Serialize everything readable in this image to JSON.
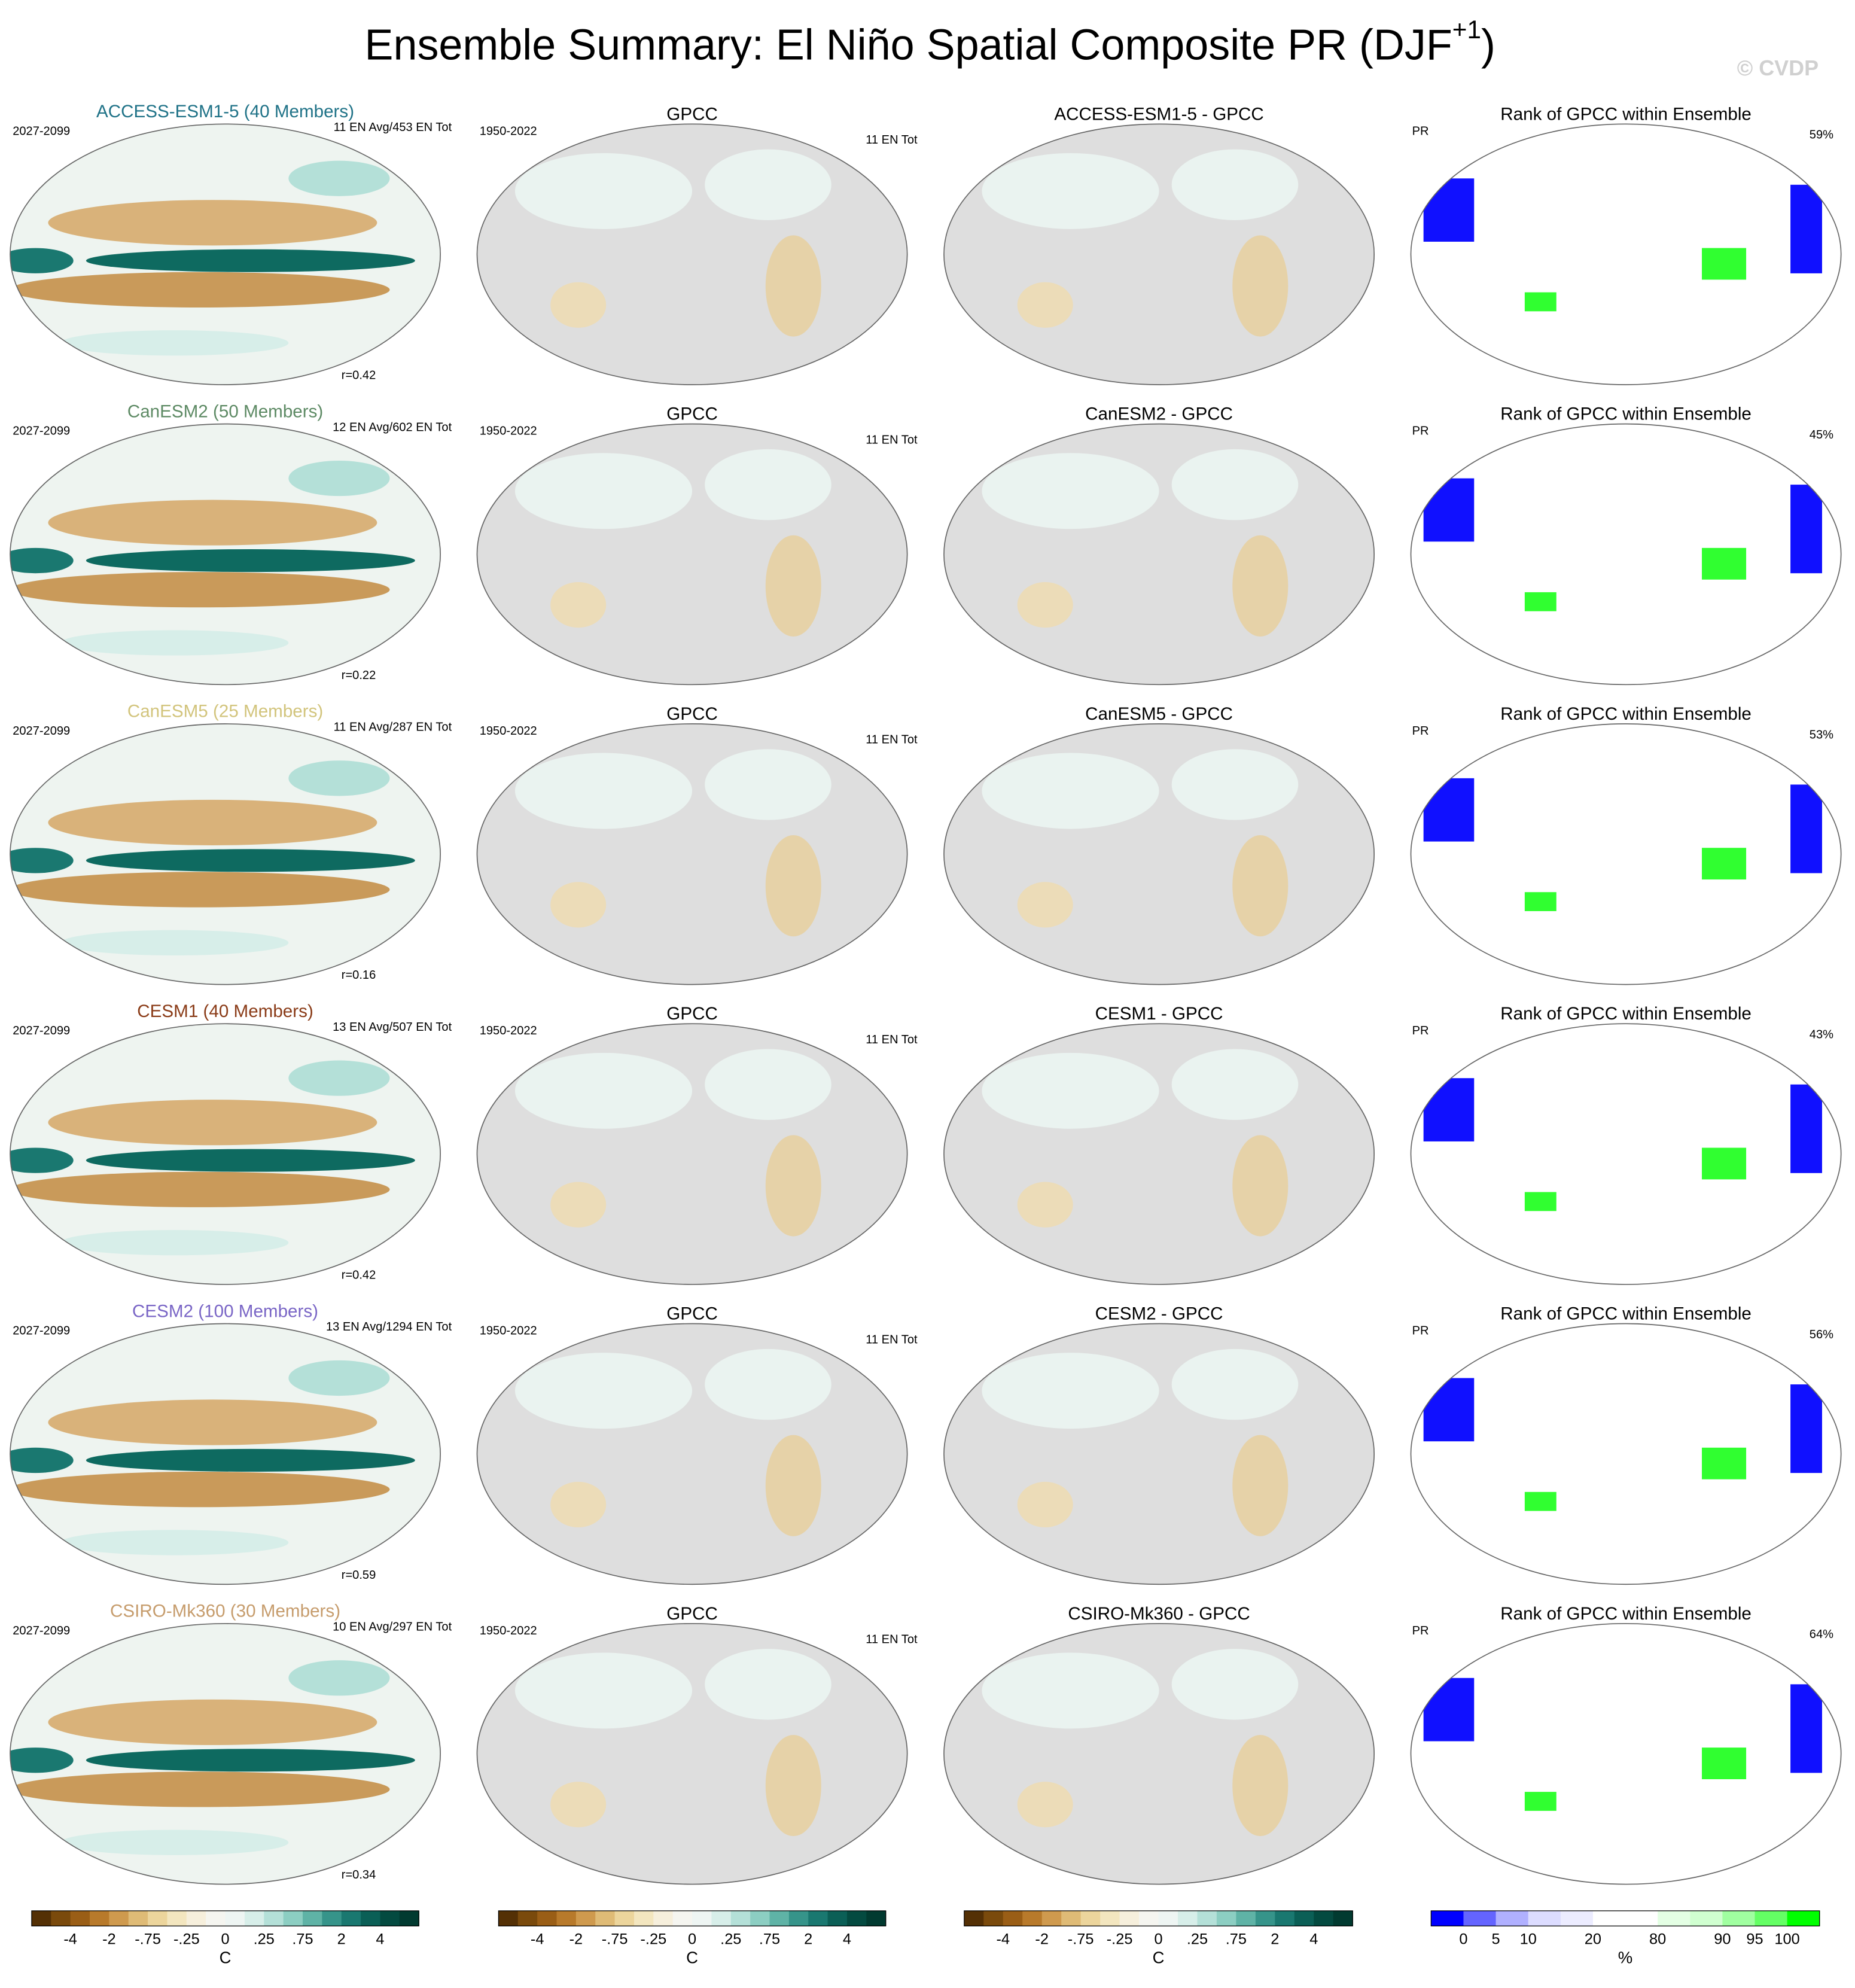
{
  "title": {
    "text": "Ensemble Summary: El Niño Spatial Composite PR (DJF",
    "superscript": "+1",
    "closing": ")"
  },
  "watermark": "© CVDP",
  "rows": [
    {
      "model": {
        "label": "ACCESS-ESM1-5 (40 Members)",
        "color": "#1f7287"
      },
      "period": "2027-2099",
      "counts": "11 EN Avg/453 EN Tot",
      "correlation": "r=0.42",
      "obs": {
        "title": "GPCC",
        "period": "1950-2022",
        "counts": "11 EN Tot"
      },
      "difference": {
        "title": "ACCESS-ESM1-5 - GPCC"
      },
      "rank": {
        "title": "Rank of GPCC within Ensemble",
        "variable": "PR",
        "percent": "59%"
      }
    },
    {
      "model": {
        "label": "CanESM2 (50 Members)",
        "color": "#5d8a64"
      },
      "period": "2027-2099",
      "counts": "12 EN Avg/602 EN Tot",
      "correlation": "r=0.22",
      "obs": {
        "title": "GPCC",
        "period": "1950-2022",
        "counts": "11 EN Tot"
      },
      "difference": {
        "title": "CanESM2 - GPCC"
      },
      "rank": {
        "title": "Rank of GPCC within Ensemble",
        "variable": "PR",
        "percent": "45%"
      }
    },
    {
      "model": {
        "label": "CanESM5 (25 Members)",
        "color": "#d2c47c"
      },
      "period": "2027-2099",
      "counts": "11 EN Avg/287 EN Tot",
      "correlation": "r=0.16",
      "obs": {
        "title": "GPCC",
        "period": "1950-2022",
        "counts": "11 EN Tot"
      },
      "difference": {
        "title": "CanESM5 - GPCC"
      },
      "rank": {
        "title": "Rank of GPCC within Ensemble",
        "variable": "PR",
        "percent": "53%"
      }
    },
    {
      "model": {
        "label": "CESM1 (40 Members)",
        "color": "#8a3b17"
      },
      "period": "2027-2099",
      "counts": "13 EN Avg/507 EN Tot",
      "correlation": "r=0.42",
      "obs": {
        "title": "GPCC",
        "period": "1950-2022",
        "counts": "11 EN Tot"
      },
      "difference": {
        "title": "CESM1 - GPCC"
      },
      "rank": {
        "title": "Rank of GPCC within Ensemble",
        "variable": "PR",
        "percent": "43%"
      }
    },
    {
      "model": {
        "label": "CESM2 (100 Members)",
        "color": "#7a66c6"
      },
      "period": "2027-2099",
      "counts": "13 EN Avg/1294 EN Tot",
      "correlation": "r=0.59",
      "obs": {
        "title": "GPCC",
        "period": "1950-2022",
        "counts": "11 EN Tot"
      },
      "difference": {
        "title": "CESM2 - GPCC"
      },
      "rank": {
        "title": "Rank of GPCC within Ensemble",
        "variable": "PR",
        "percent": "56%"
      }
    },
    {
      "model": {
        "label": "CSIRO-Mk360 (30 Members)",
        "color": "#c69c6c"
      },
      "period": "2027-2099",
      "counts": "10 EN Avg/297 EN Tot",
      "correlation": "r=0.34",
      "obs": {
        "title": "GPCC",
        "period": "1950-2022",
        "counts": "11 EN Tot"
      },
      "difference": {
        "title": "CSIRO-Mk360 - GPCC"
      },
      "rank": {
        "title": "Rank of GPCC within Ensemble",
        "variable": "PR",
        "percent": "64%"
      }
    }
  ],
  "colorbars": [
    {
      "colors": [
        "#543005",
        "#7a4a0c",
        "#9a5e16",
        "#b87a2b",
        "#cf9a4e",
        "#dfbb76",
        "#ecd59c",
        "#f3e6bf",
        "#f6efdc",
        "#f5f5f0",
        "#eef5f3",
        "#d7eee9",
        "#b4e0d8",
        "#8ccec2",
        "#5fb3a6",
        "#36948a",
        "#1a7870",
        "#0b5f56",
        "#044a40",
        "#013a30"
      ],
      "labels": [
        "-4",
        "-2",
        "-.75",
        "-.25",
        "0",
        ".25",
        ".75",
        "2",
        "4"
      ],
      "unit": "C"
    },
    {
      "colors": [
        "#543005",
        "#7a4a0c",
        "#9a5e16",
        "#b87a2b",
        "#cf9a4e",
        "#dfbb76",
        "#ecd59c",
        "#f3e6bf",
        "#f6efdc",
        "#f5f5f0",
        "#eef5f3",
        "#d7eee9",
        "#b4e0d8",
        "#8ccec2",
        "#5fb3a6",
        "#36948a",
        "#1a7870",
        "#0b5f56",
        "#044a40",
        "#013a30"
      ],
      "labels": [
        "-4",
        "-2",
        "-.75",
        "-.25",
        "0",
        ".25",
        ".75",
        "2",
        "4"
      ],
      "unit": "C"
    },
    {
      "colors": [
        "#543005",
        "#7a4a0c",
        "#9a5e16",
        "#b87a2b",
        "#cf9a4e",
        "#dfbb76",
        "#ecd59c",
        "#f3e6bf",
        "#f6efdc",
        "#f5f5f0",
        "#eef5f3",
        "#d7eee9",
        "#b4e0d8",
        "#8ccec2",
        "#5fb3a6",
        "#36948a",
        "#1a7870",
        "#0b5f56",
        "#044a40",
        "#013a30"
      ],
      "labels": [
        "-4",
        "-2",
        "-.75",
        "-.25",
        "0",
        ".25",
        ".75",
        "2",
        "4"
      ],
      "unit": "C"
    },
    {
      "colors": [
        "#0000ff",
        "#6464ff",
        "#b0b0ff",
        "#dcdcff",
        "#ececff",
        "#ffffff",
        "#ffffff",
        "#e4ffe4",
        "#d0ffd0",
        "#a0ffa0",
        "#64ff64",
        "#00ff00"
      ],
      "labels": [
        "0",
        "5",
        "10",
        "20",
        "80",
        "90",
        "95",
        "100"
      ],
      "unit": "%"
    }
  ]
}
